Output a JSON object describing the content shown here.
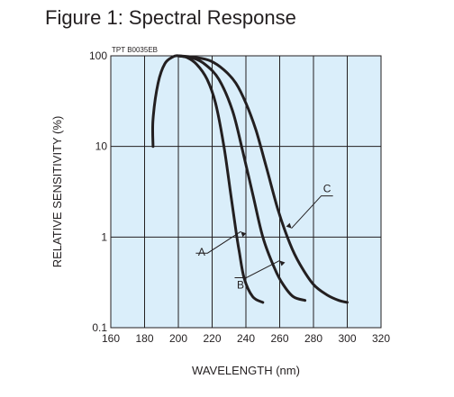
{
  "figure_title": "Figure 1: Spectral Response",
  "chart_data": {
    "type": "line",
    "code_label": "TPT B0035EB",
    "xlabel": "WAVELENGTH (nm)",
    "ylabel": "RELATIVE SENSITIVITY (%)",
    "x_scale": "linear",
    "y_scale": "log",
    "xlim": [
      160,
      320
    ],
    "ylim": [
      0.1,
      100
    ],
    "x_ticks": [
      "160",
      "180",
      "200",
      "220",
      "240",
      "260",
      "280",
      "300",
      "320"
    ],
    "y_ticks": [
      "0.1",
      "1",
      "10",
      "100"
    ],
    "grid": true,
    "colors": {
      "background": "#daeefa",
      "ink": "#231f20"
    },
    "series": [
      {
        "name": "A",
        "x": [
          185,
          185,
          188,
          192,
          197,
          200,
          205,
          211,
          217,
          222,
          227,
          231,
          234,
          236,
          239,
          244,
          250
        ],
        "y": [
          10,
          20,
          50,
          82,
          98,
          100,
          96,
          80,
          55,
          30,
          10,
          3,
          1.2,
          0.7,
          0.35,
          0.22,
          0.19
        ]
      },
      {
        "name": "B",
        "x": [
          200,
          209,
          216,
          224,
          232,
          238,
          244,
          250,
          257,
          262,
          268,
          275
        ],
        "y": [
          100,
          94,
          80,
          55,
          25,
          9,
          3,
          1,
          0.45,
          0.3,
          0.22,
          0.2
        ]
      },
      {
        "name": "C",
        "x": [
          200,
          210,
          219,
          227,
          234,
          240,
          246,
          252,
          259,
          266,
          272,
          280,
          288,
          295,
          300
        ],
        "y": [
          100,
          96,
          88,
          70,
          50,
          30,
          15,
          6,
          2,
          0.85,
          0.5,
          0.3,
          0.23,
          0.2,
          0.19
        ]
      }
    ],
    "annotations": [
      {
        "label": "A",
        "x": 237,
        "y": 1.15
      },
      {
        "label": "B",
        "x": 260,
        "y": 0.55
      },
      {
        "label": "C",
        "x": 267,
        "y": 1.25
      }
    ]
  }
}
